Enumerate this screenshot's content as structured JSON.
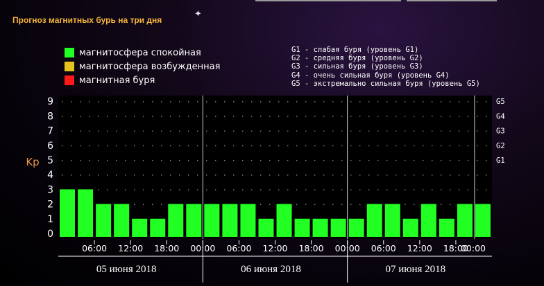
{
  "page": {
    "title": "Прогноз магнитных бурь на три дня",
    "legend": [
      {
        "label": "магнитосфера спокойная",
        "color": "#22ff22"
      },
      {
        "label": "магнитосфера возбужденная",
        "color": "#e6c21e"
      },
      {
        "label": "магнитная буря",
        "color": "#ff1a1a"
      }
    ],
    "g_legend": [
      "G1 - слабая буря (уровень G1)",
      "G2 - средняя буря (уровень G2)",
      "G3 - сильная буря (уровень G3)",
      "G4 - очень сильная буря (уровень G4)",
      "G5 - экстремально сильная буря (уровень G5)"
    ]
  },
  "chart_data": {
    "type": "bar",
    "ylabel": "Kp",
    "ylim": [
      0,
      9
    ],
    "yticks": [
      0,
      1,
      2,
      3,
      4,
      5,
      6,
      7,
      8,
      9
    ],
    "right_ticks": [
      {
        "kp": 5,
        "label": "G1"
      },
      {
        "kp": 6,
        "label": "G2"
      },
      {
        "kp": 7,
        "label": "G3"
      },
      {
        "kp": 8,
        "label": "G4"
      },
      {
        "kp": 9,
        "label": "G5"
      }
    ],
    "bar_color": "#22ff22",
    "days": [
      "05 июня 2018",
      "06 июня 2018",
      "07 июня 2018"
    ],
    "time_labels": [
      "06:00",
      "12:00",
      "18:00",
      "00:00"
    ],
    "values": [
      3,
      3,
      2,
      2,
      1,
      1,
      2,
      2,
      2,
      2,
      2,
      1,
      2,
      1,
      1,
      1,
      1,
      2,
      2,
      1,
      2,
      1,
      2,
      2
    ],
    "grid": true
  }
}
